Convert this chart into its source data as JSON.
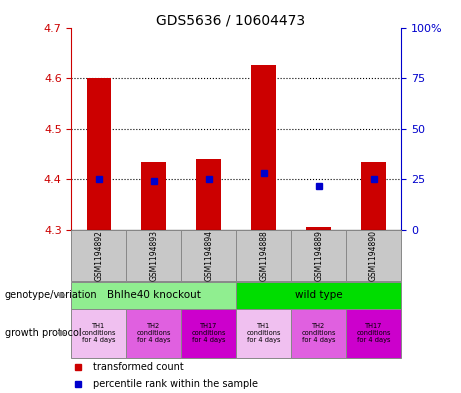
{
  "title": "GDS5636 / 10604473",
  "samples": [
    "GSM1194892",
    "GSM1194893",
    "GSM1194894",
    "GSM1194888",
    "GSM1194889",
    "GSM1194890"
  ],
  "red_bars_bottom": [
    4.3,
    4.3,
    4.3,
    4.3,
    4.3,
    4.3
  ],
  "red_bars_top": [
    4.601,
    4.435,
    4.441,
    4.625,
    4.305,
    4.435
  ],
  "blue_dots_y": [
    4.401,
    4.396,
    4.401,
    4.412,
    4.386,
    4.401
  ],
  "ylim": [
    4.3,
    4.7
  ],
  "yticks_left": [
    4.3,
    4.4,
    4.5,
    4.6,
    4.7
  ],
  "yticks_right": [
    0,
    25,
    50,
    75,
    100
  ],
  "left_axis_color": "#cc0000",
  "right_axis_color": "#0000cc",
  "bar_color": "#cc0000",
  "dot_color": "#0000cc",
  "bar_width": 0.45,
  "genotype_labels": [
    "Bhlhe40 knockout",
    "wild type"
  ],
  "genotype_color_left": "#90EE90",
  "genotype_color_right": "#00dd00",
  "growth_labels": [
    "TH1\nconditions\nfor 4 days",
    "TH2\nconditions\nfor 4 days",
    "TH17\nconditions\nfor 4 days",
    "TH1\nconditions\nfor 4 days",
    "TH2\nconditions\nfor 4 days",
    "TH17\nconditions\nfor 4 days"
  ],
  "growth_colors": [
    "#f0c0f0",
    "#e060e0",
    "#cc00cc",
    "#f0c0f0",
    "#e060e0",
    "#cc00cc"
  ],
  "annotation_genotype": "genotype/variation",
  "annotation_growth": "growth protocol",
  "legend_red": "transformed count",
  "legend_blue": "percentile rank within the sample",
  "sample_bg": "#c8c8c8"
}
